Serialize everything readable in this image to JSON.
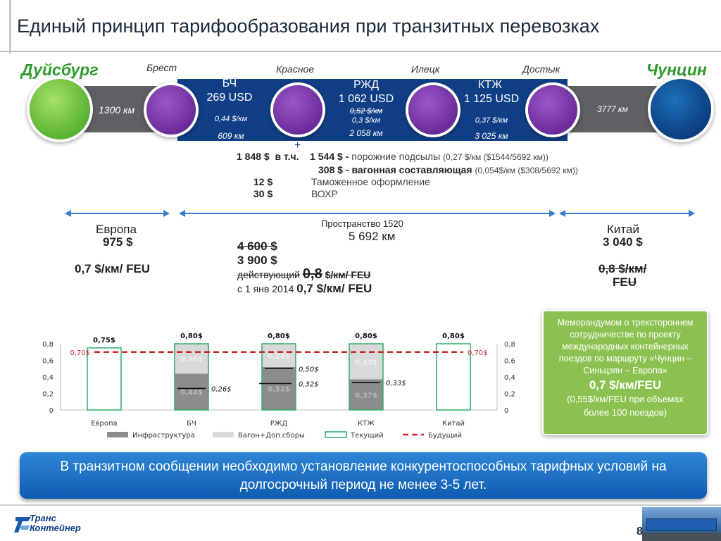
{
  "title": "Единый принцип тарифообразования при транзитных перевозках",
  "route": {
    "city_left": "Дуйсбург",
    "city_right": "Чунцин",
    "stations": [
      "Брест",
      "Красное",
      "Илецк",
      "Достык"
    ],
    "left_km": "1300 км",
    "right_km": "3777 км",
    "segments": [
      {
        "name": "БЧ",
        "price": "269 USD",
        "rate": "0,44 $/км",
        "km": "609 км"
      },
      {
        "name": "РЖД",
        "price": "1 062 USD",
        "rate_old": "0,52 $/км",
        "rate": "0,3 $/км",
        "km": "2 058 км"
      },
      {
        "name": "КТЖ",
        "price": "1 125 USD",
        "rate": "0,37 $/км",
        "km": "3 025 км"
      }
    ],
    "plus": "+"
  },
  "breakdown": {
    "line1_total": "1 848 $",
    "line1_incl": "в т.ч.",
    "line1_amount": "1 544 $",
    "line1_dash": "-",
    "line1_desc": "порожние подсылы",
    "line1_note": "(0,27 $/км ($1544/5692 км))",
    "line2_amount": "308 $ - вагонная составляющая",
    "line2_note": "(0,054$/км ($308/5692 км))",
    "line3_amount": "12 $",
    "line3_desc": "Таможенное оформление",
    "line4_amount": "30 $",
    "line4_desc": "ВОХР"
  },
  "regions": {
    "europe": {
      "name": "Европа",
      "price": "975 $",
      "rate": "0,7 $/км/ FEU"
    },
    "space": {
      "name": "Пространство  1520",
      "km": "5 692 км",
      "old_price": "4 600 $",
      "new_price": "3 900 $",
      "current_label": "действующий",
      "current_value": "0,8",
      "current_unit": "$/км/ FEU",
      "from_label": "с 1 янв 2014",
      "from_value": "0,7 $/км/ FEU"
    },
    "china": {
      "name": "Китай",
      "price": "3 040 $",
      "rate": "0,8 $/км/",
      "unit": "FEU"
    }
  },
  "memo": {
    "text": "Меморандумом о трехстороннем сотрудничестве по проекту международных контейнерных поездов по маршруту «Чунцин – Синьцзян – Европа»",
    "rate": "0,7 $/км/FEU",
    "note": "(0,55$/км/FEU при объемах более 100 поездов)"
  },
  "banner": {
    "text": "В транзитном сообщении необходимо установление конкурентоспособных тарифных условий на долгосрочный период не менее 3-5 лет."
  },
  "logo": {
    "line1": "Транс",
    "line2": "Контейнер"
  },
  "page_number": "8",
  "chart_data": {
    "type": "bar",
    "categories": [
      "Европа",
      "БЧ",
      "РЖД",
      "КТЖ",
      "Китай"
    ],
    "ylim": [
      0,
      0.8
    ],
    "yticks": [
      "0",
      "0,2",
      "0,4",
      "0,6",
      "0,8"
    ],
    "series": [
      {
        "name": "Инфраструктура",
        "values": [
          0,
          0.44,
          0.52,
          0.37,
          0
        ]
      },
      {
        "name": "Вагон+Доп.сборы",
        "values": [
          0,
          0.36,
          0.28,
          0.43,
          0
        ]
      },
      {
        "name": "Текущий",
        "values": [
          0.75,
          0.8,
          0.8,
          0.8,
          0.8
        ]
      },
      {
        "name": "Будущий",
        "values": [
          0.7,
          0.7,
          0.7,
          0.7,
          0.7
        ]
      }
    ],
    "top_labels": [
      "0,75$",
      "0,80$",
      "0,80$",
      "0,80$",
      "0,80$"
    ],
    "inner_labels": [
      "",
      "0,36$",
      "0,28$",
      "0,43$",
      ""
    ],
    "inner_bottom_labels": [
      "",
      "0,44$",
      "0,52$",
      "0,37$",
      ""
    ],
    "marker_labels": [
      "",
      "0,26$",
      "0,50$",
      "0,33$",
      ""
    ],
    "marker_values": [
      null,
      0.26,
      0.5,
      0.33,
      null
    ],
    "marker2_label": "0,32$",
    "marker2_value": 0.32,
    "future_labels": [
      "0,70$",
      "0,70$"
    ],
    "colors": {
      "infra": "#8c8c8c",
      "wagon": "#d9d9d9",
      "current": "#2fae6a",
      "future": "#c8262d"
    }
  }
}
